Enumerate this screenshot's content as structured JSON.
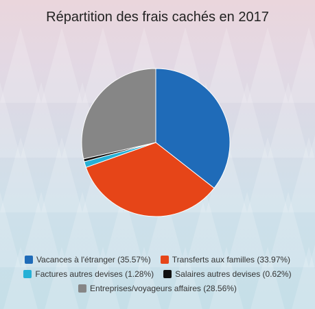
{
  "chart_data": {
    "type": "pie",
    "title": "Répartition des frais cachés en 2017",
    "slices": [
      {
        "label": "Vacances à l'étranger",
        "value": 35.57,
        "color": "#1f6bb8",
        "legend": "Vacances à l'étranger (35.57%)"
      },
      {
        "label": "Transferts aux familles",
        "value": 33.97,
        "color": "#e64518",
        "legend": "Transferts aux familles (33.97%)"
      },
      {
        "label": "Factures autres devises",
        "value": 1.28,
        "color": "#26b0d6",
        "legend": "Factures autres devises (1.28%)"
      },
      {
        "label": "Salaires autres devises",
        "value": 0.62,
        "color": "#111111",
        "legend": "Salaires autres devises (0.62%)"
      },
      {
        "label": "Entreprises/voyageurs affaires",
        "value": 28.56,
        "color": "#868686",
        "legend": "Entreprises/voyageurs affaires (28.56%)"
      }
    ],
    "legend_position": "bottom"
  }
}
